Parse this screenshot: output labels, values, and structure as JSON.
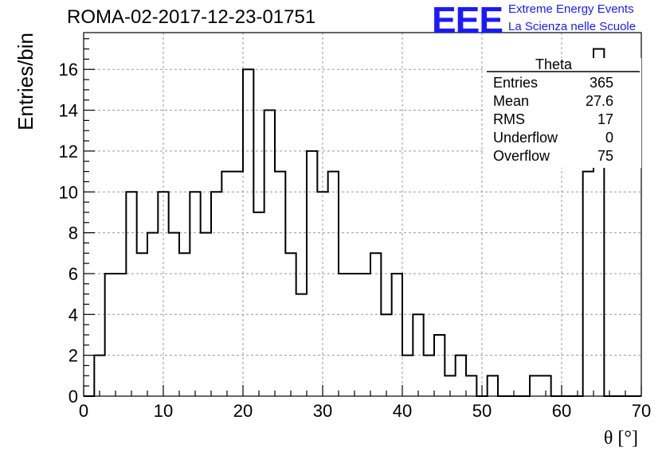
{
  "header": {
    "title": "ROMA-02-2017-12-23-01751",
    "logo_text": "EEE",
    "project_line1": "Extreme Energy Events",
    "project_line2": "La Scienza nelle Scuole"
  },
  "stats": {
    "name": "Theta",
    "rows": [
      {
        "label": "Entries",
        "value": "365"
      },
      {
        "label": "Mean",
        "value": "27.6"
      },
      {
        "label": "RMS",
        "value": "17"
      },
      {
        "label": "Underflow",
        "value": "0"
      },
      {
        "label": "Overflow",
        "value": "75"
      }
    ]
  },
  "colors": {
    "brand": "#1a1aff",
    "grid": "#999999",
    "line": "#000000"
  },
  "chart_data": {
    "type": "bar",
    "histogram": true,
    "xlabel": "θ [°]",
    "ylabel": "Entries/bin",
    "xlim": [
      0,
      70
    ],
    "ylim": [
      0,
      17.8
    ],
    "grid": true,
    "xticks": [
      0,
      10,
      20,
      30,
      40,
      50,
      60,
      70
    ],
    "yticks": [
      0,
      2,
      4,
      6,
      8,
      10,
      12,
      14,
      16
    ],
    "bin_edges": [
      0,
      1.3333,
      2.6667,
      4,
      5.3333,
      6.6667,
      8,
      9.3333,
      10.6667,
      12,
      13.3333,
      14.6667,
      16,
      17.3333,
      18.6667,
      20,
      21.3333,
      22.6667,
      24,
      25.3333,
      26.6667,
      28,
      29.3333,
      30.6667,
      32,
      33.3333,
      34.6667,
      36,
      37.3333,
      38.6667,
      40,
      41.3333,
      42.6667,
      44,
      45.3333,
      46.6667,
      48,
      49.3333,
      50.6667,
      52,
      53.3333,
      54.6667,
      56,
      57.3333,
      58.6667,
      60,
      61.3333,
      62.6667,
      64,
      65.3333,
      66.6667,
      68,
      69.3333,
      70.6667
    ],
    "values": [
      0,
      2,
      6,
      6,
      10,
      7,
      8,
      10,
      8,
      7,
      10,
      8,
      10,
      11,
      11,
      16,
      9,
      14,
      11,
      7,
      5,
      12,
      10,
      11,
      6,
      6,
      6,
      7,
      4,
      6,
      2,
      4,
      2,
      3,
      1,
      2,
      1,
      0,
      1,
      0,
      0,
      0,
      1,
      1,
      0,
      0,
      0,
      11,
      17,
      0,
      0,
      0,
      0
    ]
  }
}
